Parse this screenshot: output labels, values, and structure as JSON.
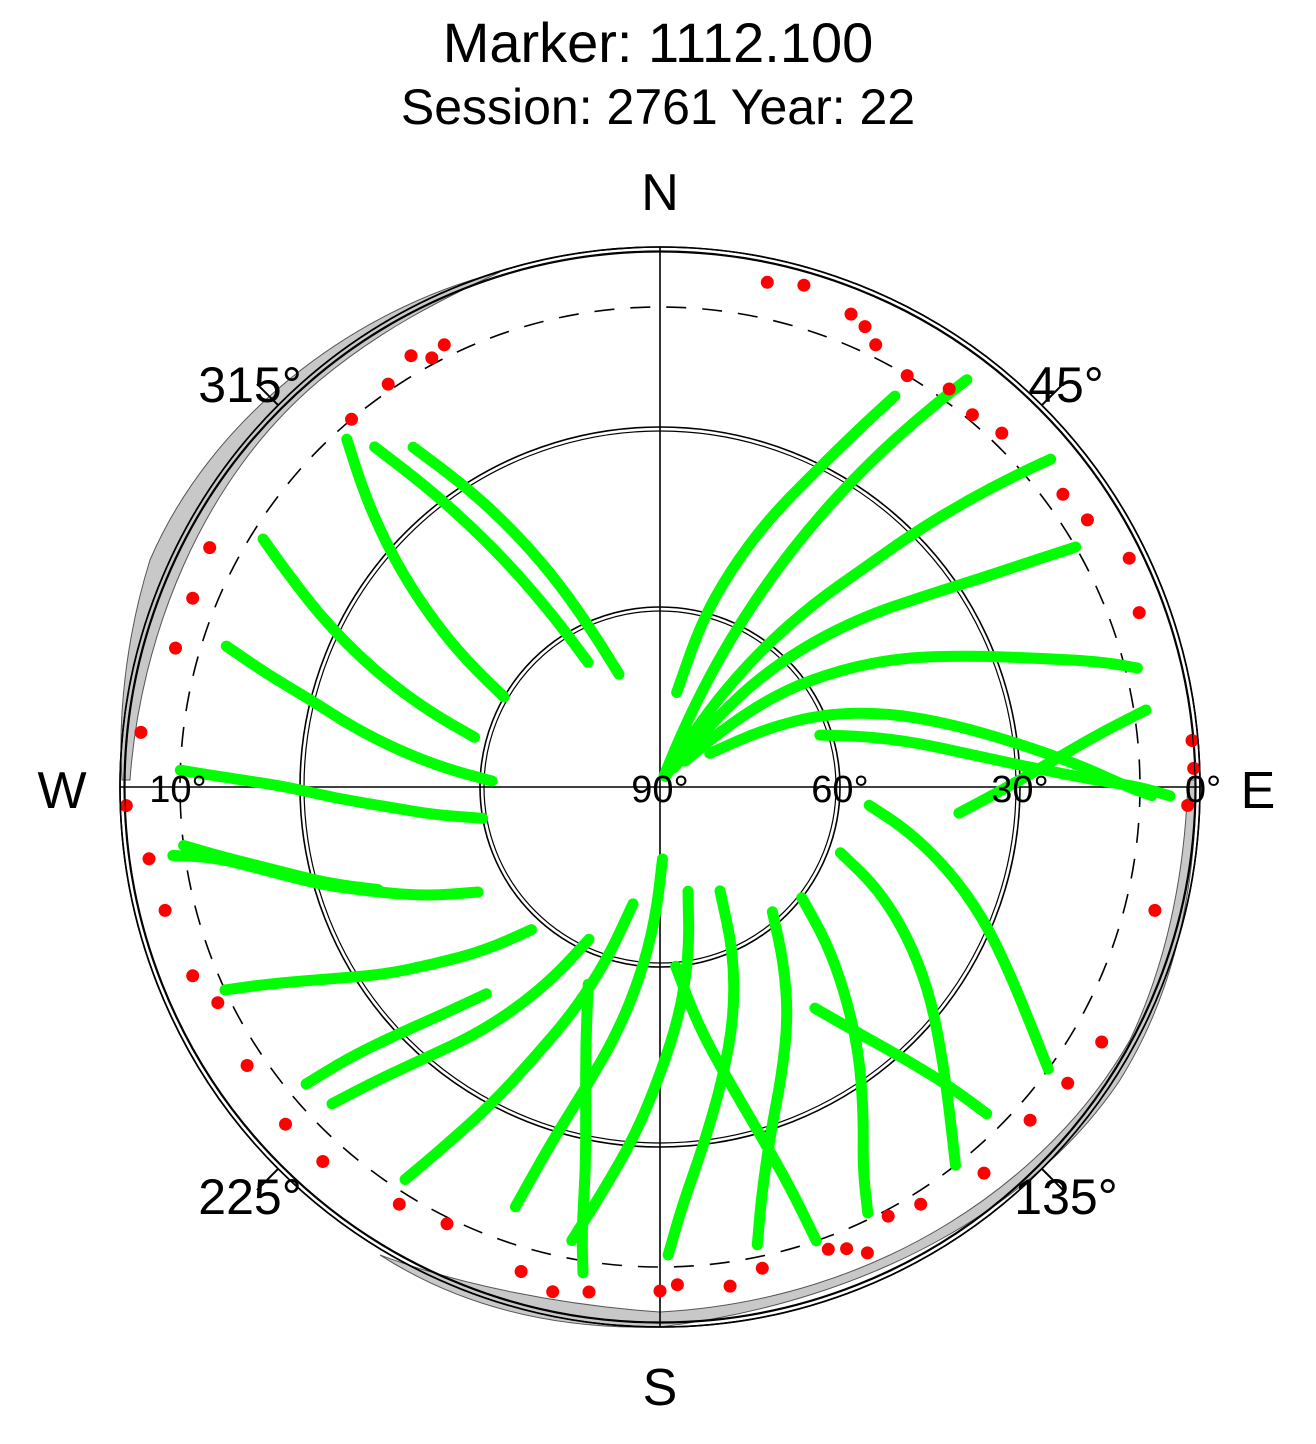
{
  "title": "Marker: 1112.100",
  "subtitle": "Session: 2761 Year: 22",
  "compass": {
    "north": "N",
    "south": "S",
    "west": "W",
    "east": "E"
  },
  "azimuth_labels": [
    "45°",
    "135°",
    "225°",
    "315°"
  ],
  "elevation_labels": [
    "0°",
    "10°",
    "30°",
    "60°",
    "90°"
  ],
  "colors": {
    "good_obs": "#00ff00",
    "flagged_obs": "#ff0000",
    "horizon_mask": "#c8c8c8",
    "axes": "#000000"
  },
  "chart_data": {
    "type": "scatter",
    "projection": "polar-skyplot",
    "title": "Marker: 1112.100",
    "subtitle": "Session: 2761 Year: 22",
    "radial_axis": {
      "quantity": "elevation",
      "units": "degrees",
      "range": [
        0,
        90
      ],
      "center": 90,
      "ticks": [
        0,
        10,
        30,
        60,
        90
      ]
    },
    "angular_axis": {
      "quantity": "azimuth",
      "units": "degrees",
      "zero": "north",
      "direction": "clockwise",
      "ticks": [
        0,
        45,
        90,
        135,
        180,
        225,
        270,
        315
      ]
    },
    "elevation_cutoff_dashed": 10,
    "grid_circles": [
      0,
      30,
      60
    ],
    "series": [
      {
        "color": "#00ff00",
        "tracks": [
          [
            [
              20,
              88
            ],
            [
              22,
              80
            ],
            [
              24,
              70
            ],
            [
              26,
              60
            ],
            [
              28,
              50
            ],
            [
              30,
              40
            ],
            [
              32,
              30
            ],
            [
              34,
              20
            ],
            [
              36,
              10
            ],
            [
              37,
              5
            ]
          ],
          [
            [
              28,
              88
            ],
            [
              31,
              80
            ],
            [
              34,
              70
            ],
            [
              37,
              60
            ],
            [
              40,
              50
            ],
            [
              43,
              40
            ],
            [
              45,
              30
            ],
            [
              47,
              20
            ],
            [
              49,
              10
            ],
            [
              50,
              5
            ]
          ],
          [
            [
              36,
              86
            ],
            [
              39,
              76
            ],
            [
              42,
              66
            ],
            [
              46,
              56
            ],
            [
              50,
              46
            ],
            [
              54,
              36
            ],
            [
              57,
              26
            ],
            [
              59,
              16
            ],
            [
              60,
              10
            ]
          ],
          [
            [
              44,
              84
            ],
            [
              48,
              74
            ],
            [
              52,
              64
            ],
            [
              57,
              54
            ],
            [
              62,
              44
            ],
            [
              67,
              34
            ],
            [
              71,
              24
            ],
            [
              74,
              14
            ],
            [
              76,
              8
            ]
          ],
          [
            [
              56,
              80
            ],
            [
              61,
              70
            ],
            [
              66,
              60
            ],
            [
              72,
              50
            ],
            [
              78,
              40
            ],
            [
              83,
              30
            ],
            [
              87,
              20
            ],
            [
              90,
              12
            ],
            [
              91,
              8
            ]
          ],
          [
            [
              72,
              62
            ],
            [
              76,
              55
            ],
            [
              80,
              47
            ],
            [
              84,
              38
            ],
            [
              87,
              28
            ],
            [
              89,
              18
            ],
            [
              90,
              10
            ],
            [
              91,
              5
            ]
          ],
          [
            [
              95,
              55
            ],
            [
              100,
              48
            ],
            [
              106,
              40
            ],
            [
              112,
              32
            ],
            [
              118,
              24
            ],
            [
              123,
              16
            ],
            [
              126,
              10
            ]
          ],
          [
            [
              110,
              58
            ],
            [
              115,
              50
            ],
            [
              121,
              42
            ],
            [
              127,
              34
            ],
            [
              133,
              26
            ],
            [
              138,
              18
            ],
            [
              142,
              10
            ]
          ],
          [
            [
              128,
              60
            ],
            [
              133,
              52
            ],
            [
              138,
              44
            ],
            [
              143,
              35
            ],
            [
              148,
              26
            ],
            [
              152,
              18
            ],
            [
              154,
              11
            ]
          ],
          [
            [
              138,
              62
            ],
            [
              145,
              54
            ],
            [
              151,
              46
            ],
            [
              157,
              38
            ],
            [
              162,
              30
            ],
            [
              166,
              20
            ],
            [
              168,
              12
            ]
          ],
          [
            [
              150,
              70
            ],
            [
              156,
              60
            ],
            [
              162,
              50
            ],
            [
              168,
              40
            ],
            [
              173,
              30
            ],
            [
              177,
              20
            ],
            [
              179,
              12
            ]
          ],
          [
            [
              165,
              72
            ],
            [
              170,
              62
            ],
            [
              175,
              52
            ],
            [
              180,
              42
            ],
            [
              184,
              32
            ],
            [
              188,
              22
            ],
            [
              191,
              13
            ]
          ],
          [
            [
              178,
              78
            ],
            [
              182,
              68
            ],
            [
              186,
              58
            ],
            [
              190,
              48
            ],
            [
              194,
              38
            ],
            [
              197,
              28
            ],
            [
              199,
              16
            ]
          ],
          [
            [
              193,
              70
            ],
            [
              197,
              60
            ],
            [
              201,
              50
            ],
            [
              205,
              40
            ],
            [
              208,
              30
            ],
            [
              211,
              20
            ],
            [
              213,
              12
            ]
          ],
          [
            [
              205,
              62
            ],
            [
              209,
              54
            ],
            [
              213,
              46
            ],
            [
              217,
              38
            ],
            [
              221,
              30
            ],
            [
              224,
              22
            ],
            [
              226,
              14
            ]
          ],
          [
            [
              222,
              58
            ],
            [
              227,
              50
            ],
            [
              232,
              42
            ],
            [
              236,
              34
            ],
            [
              240,
              26
            ],
            [
              243,
              18
            ],
            [
              245,
              10
            ]
          ],
          [
            [
              240,
              55
            ],
            [
              245,
              47
            ],
            [
              250,
              39
            ],
            [
              254,
              31
            ],
            [
              258,
              23
            ],
            [
              261,
              15
            ],
            [
              262,
              8
            ]
          ],
          [
            [
              260,
              60
            ],
            [
              263,
              52
            ],
            [
              266,
              44
            ],
            [
              268,
              36
            ],
            [
              270,
              28
            ],
            [
              271,
              20
            ],
            [
              272,
              10
            ]
          ],
          [
            [
              272,
              62
            ],
            [
              275,
              54
            ],
            [
              278,
              46
            ],
            [
              281,
              38
            ],
            [
              284,
              30
            ],
            [
              286,
              22
            ],
            [
              288,
              14
            ]
          ],
          [
            [
              285,
              58
            ],
            [
              288,
              50
            ],
            [
              291,
              42
            ],
            [
              294,
              34
            ],
            [
              297,
              26
            ],
            [
              300,
              18
            ],
            [
              302,
              12
            ]
          ],
          [
            [
              300,
              60
            ],
            [
              303,
              52
            ],
            [
              306,
              44
            ],
            [
              309,
              36
            ],
            [
              312,
              28
            ],
            [
              315,
              20
            ],
            [
              318,
              12
            ]
          ],
          [
            [
              330,
              66
            ],
            [
              328,
              56
            ],
            [
              326,
              46
            ],
            [
              324,
              36
            ],
            [
              322,
              26
            ],
            [
              320,
              16
            ]
          ],
          [
            [
              340,
              70
            ],
            [
              336,
              60
            ],
            [
              333,
              50
            ],
            [
              330,
              40
            ],
            [
              327,
              30
            ],
            [
              324,
              20
            ]
          ],
          [
            [
              10,
              74
            ],
            [
              14,
              62
            ],
            [
              18,
              52
            ],
            [
              22,
              42
            ],
            [
              26,
              32
            ],
            [
              29,
              22
            ],
            [
              31,
              14
            ]
          ],
          [
            [
              95,
              40
            ],
            [
              90,
              32
            ],
            [
              86,
              24
            ],
            [
              83,
              16
            ],
            [
              81,
              8
            ]
          ],
          [
            [
              250,
              40
            ],
            [
              254,
              32
            ],
            [
              258,
              24
            ],
            [
              261,
              16
            ],
            [
              263,
              10
            ]
          ],
          [
            [
              175,
              60
            ],
            [
              171,
              50
            ],
            [
              167,
              40
            ],
            [
              164,
              30
            ],
            [
              162,
              20
            ],
            [
              161,
              10
            ]
          ],
          [
            [
              200,
              55
            ],
            [
              196,
              45
            ],
            [
              193,
              35
            ],
            [
              191,
              25
            ],
            [
              190,
              15
            ],
            [
              189,
              8
            ]
          ],
          [
            [
              145,
              45
            ],
            [
              141,
              37
            ],
            [
              138,
              29
            ],
            [
              136,
              21
            ],
            [
              135,
              13
            ]
          ],
          [
            [
              220,
              45
            ],
            [
              224,
              37
            ],
            [
              227,
              29
            ],
            [
              229,
              21
            ],
            [
              230,
              13
            ]
          ]
        ]
      },
      {
        "color": "#ff0000",
        "points": [
          [
            12,
            4
          ],
          [
            16,
            3
          ],
          [
            22,
            5
          ],
          [
            24,
            6
          ],
          [
            26,
            8
          ],
          [
            31,
            10
          ],
          [
            36,
            8
          ],
          [
            40,
            9
          ],
          [
            44,
            8
          ],
          [
            54,
            7
          ],
          [
            58,
            6
          ],
          [
            64,
            3
          ],
          [
            70,
            5
          ],
          [
            85,
            1
          ],
          [
            88,
            1
          ],
          [
            92,
            2
          ],
          [
            104,
            5
          ],
          [
            120,
            5
          ],
          [
            126,
            6
          ],
          [
            132,
            7
          ],
          [
            140,
            6
          ],
          [
            148,
            8
          ],
          [
            152,
            9
          ],
          [
            156,
            5
          ],
          [
            158,
            7
          ],
          [
            160,
            8
          ],
          [
            168,
            8
          ],
          [
            172,
            6
          ],
          [
            178,
            7
          ],
          [
            180,
            6
          ],
          [
            188,
            5
          ],
          [
            192,
            4
          ],
          [
            196,
            6
          ],
          [
            206,
            9
          ],
          [
            212,
            8
          ],
          [
            222,
            6
          ],
          [
            228,
            6
          ],
          [
            236,
            7
          ],
          [
            244,
            8
          ],
          [
            248,
            6
          ],
          [
            256,
            5
          ],
          [
            262,
            4
          ],
          [
            268,
            1
          ],
          [
            276,
            3
          ],
          [
            286,
            6
          ],
          [
            292,
            6
          ],
          [
            298,
            5
          ],
          [
            320,
            10
          ],
          [
            326,
            9
          ],
          [
            330,
            7
          ],
          [
            332,
            9
          ],
          [
            334,
            8
          ]
        ]
      }
    ]
  }
}
